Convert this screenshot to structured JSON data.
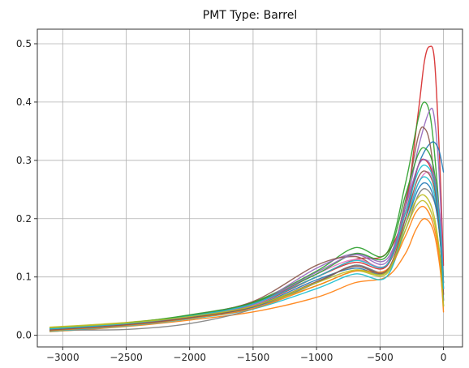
{
  "chart_data": {
    "type": "line",
    "title": "PMT Type: Barrel",
    "xlabel": "",
    "ylabel": "",
    "xlim": [
      -3200,
      150
    ],
    "ylim": [
      -0.02,
      0.525
    ],
    "grid": true,
    "xticks": [
      -3000,
      -2500,
      -2000,
      -1500,
      -1000,
      -500,
      0
    ],
    "yticks": [
      0.0,
      0.1,
      0.2,
      0.3,
      0.4,
      0.5
    ],
    "x_range": [
      -3100,
      0
    ],
    "series": [
      {
        "color": "#d62728",
        "values": [
          [
            -3100,
            0.01
          ],
          [
            -2500,
            0.02
          ],
          [
            -2000,
            0.032
          ],
          [
            -1500,
            0.052
          ],
          [
            -1000,
            0.1
          ],
          [
            -700,
            0.13
          ],
          [
            -450,
            0.14
          ],
          [
            -300,
            0.22
          ],
          [
            -200,
            0.38
          ],
          [
            -150,
            0.47
          ],
          [
            -110,
            0.495
          ],
          [
            -70,
            0.47
          ],
          [
            -30,
            0.3
          ],
          [
            0,
            0.12
          ]
        ]
      },
      {
        "color": "#2ca02c",
        "values": [
          [
            -3100,
            0.012
          ],
          [
            -2500,
            0.021
          ],
          [
            -2000,
            0.035
          ],
          [
            -1500,
            0.057
          ],
          [
            -1000,
            0.11
          ],
          [
            -700,
            0.15
          ],
          [
            -450,
            0.14
          ],
          [
            -300,
            0.26
          ],
          [
            -200,
            0.37
          ],
          [
            -150,
            0.4
          ],
          [
            -100,
            0.37
          ],
          [
            -50,
            0.26
          ],
          [
            0,
            0.1
          ]
        ]
      },
      {
        "color": "#9467bd",
        "values": [
          [
            -3100,
            0.008
          ],
          [
            -2500,
            0.019
          ],
          [
            -2000,
            0.031
          ],
          [
            -1500,
            0.053
          ],
          [
            -1000,
            0.115
          ],
          [
            -700,
            0.14
          ],
          [
            -450,
            0.13
          ],
          [
            -300,
            0.22
          ],
          [
            -200,
            0.32
          ],
          [
            -110,
            0.385
          ],
          [
            -70,
            0.37
          ],
          [
            -30,
            0.26
          ],
          [
            0,
            0.08
          ]
        ]
      },
      {
        "color": "#1f77b4",
        "values": [
          [
            -3100,
            0.009
          ],
          [
            -2500,
            0.018
          ],
          [
            -2000,
            0.03
          ],
          [
            -1500,
            0.048
          ],
          [
            -1000,
            0.09
          ],
          [
            -700,
            0.12
          ],
          [
            -450,
            0.11
          ],
          [
            -300,
            0.2
          ],
          [
            -200,
            0.29
          ],
          [
            -100,
            0.33
          ],
          [
            -40,
            0.32
          ],
          [
            0,
            0.28
          ]
        ]
      },
      {
        "color": "#ff7f0e",
        "values": [
          [
            -3100,
            0.006
          ],
          [
            -2500,
            0.015
          ],
          [
            -2000,
            0.026
          ],
          [
            -1500,
            0.04
          ],
          [
            -1000,
            0.065
          ],
          [
            -700,
            0.09
          ],
          [
            -450,
            0.1
          ],
          [
            -300,
            0.14
          ],
          [
            -220,
            0.18
          ],
          [
            -150,
            0.2
          ],
          [
            -80,
            0.18
          ],
          [
            -30,
            0.12
          ],
          [
            0,
            0.05
          ]
        ]
      },
      {
        "color": "#8c564b",
        "values": [
          [
            -3100,
            0.011
          ],
          [
            -2500,
            0.02
          ],
          [
            -2000,
            0.034
          ],
          [
            -1500,
            0.058
          ],
          [
            -1000,
            0.12
          ],
          [
            -700,
            0.135
          ],
          [
            -450,
            0.12
          ],
          [
            -300,
            0.23
          ],
          [
            -200,
            0.34
          ],
          [
            -150,
            0.355
          ],
          [
            -100,
            0.32
          ],
          [
            -40,
            0.2
          ],
          [
            0,
            0.09
          ]
        ]
      },
      {
        "color": "#e377c2",
        "values": [
          [
            -3100,
            0.01
          ],
          [
            -2500,
            0.019
          ],
          [
            -2000,
            0.032
          ],
          [
            -1500,
            0.052
          ],
          [
            -1000,
            0.105
          ],
          [
            -700,
            0.13
          ],
          [
            -450,
            0.12
          ],
          [
            -300,
            0.2
          ],
          [
            -200,
            0.26
          ],
          [
            -120,
            0.28
          ],
          [
            -60,
            0.25
          ],
          [
            -20,
            0.18
          ],
          [
            0,
            0.06
          ]
        ]
      },
      {
        "color": "#7f7f7f",
        "values": [
          [
            -3100,
            0.009
          ],
          [
            -2500,
            0.01
          ],
          [
            -2000,
            0.02
          ],
          [
            -1500,
            0.045
          ],
          [
            -1000,
            0.09
          ],
          [
            -700,
            0.12
          ],
          [
            -450,
            0.11
          ],
          [
            -300,
            0.18
          ],
          [
            -200,
            0.24
          ],
          [
            -130,
            0.25
          ],
          [
            -60,
            0.22
          ],
          [
            -20,
            0.15
          ],
          [
            0,
            0.05
          ]
        ]
      },
      {
        "color": "#bcbd22",
        "values": [
          [
            -3100,
            0.014
          ],
          [
            -2500,
            0.022
          ],
          [
            -2000,
            0.033
          ],
          [
            -1500,
            0.05
          ],
          [
            -1000,
            0.085
          ],
          [
            -700,
            0.11
          ],
          [
            -450,
            0.105
          ],
          [
            -300,
            0.18
          ],
          [
            -220,
            0.22
          ],
          [
            -150,
            0.23
          ],
          [
            -80,
            0.2
          ],
          [
            -30,
            0.14
          ],
          [
            0,
            0.06
          ]
        ]
      },
      {
        "color": "#17becf",
        "values": [
          [
            -3100,
            0.007
          ],
          [
            -2500,
            0.016
          ],
          [
            -2000,
            0.028
          ],
          [
            -1500,
            0.045
          ],
          [
            -1000,
            0.08
          ],
          [
            -700,
            0.105
          ],
          [
            -450,
            0.1
          ],
          [
            -300,
            0.19
          ],
          [
            -200,
            0.26
          ],
          [
            -130,
            0.27
          ],
          [
            -70,
            0.24
          ],
          [
            -25,
            0.16
          ],
          [
            0,
            0.07
          ]
        ]
      },
      {
        "color": "#d62728",
        "values": [
          [
            -3100,
            0.011
          ],
          [
            -2500,
            0.02
          ],
          [
            -2000,
            0.033
          ],
          [
            -1500,
            0.055
          ],
          [
            -1000,
            0.1
          ],
          [
            -700,
            0.125
          ],
          [
            -450,
            0.118
          ],
          [
            -300,
            0.21
          ],
          [
            -200,
            0.29
          ],
          [
            -140,
            0.3
          ],
          [
            -80,
            0.27
          ],
          [
            -30,
            0.18
          ],
          [
            0,
            0.08
          ]
        ]
      },
      {
        "color": "#2ca02c",
        "values": [
          [
            -3100,
            0.01
          ],
          [
            -2500,
            0.021
          ],
          [
            -2000,
            0.034
          ],
          [
            -1500,
            0.056
          ],
          [
            -1000,
            0.105
          ],
          [
            -700,
            0.14
          ],
          [
            -450,
            0.135
          ],
          [
            -300,
            0.24
          ],
          [
            -200,
            0.31
          ],
          [
            -140,
            0.32
          ],
          [
            -80,
            0.29
          ],
          [
            -30,
            0.2
          ],
          [
            0,
            0.09
          ]
        ]
      },
      {
        "color": "#1f77b4",
        "values": [
          [
            -3100,
            0.012
          ],
          [
            -2500,
            0.02
          ],
          [
            -2000,
            0.031
          ],
          [
            -1500,
            0.05
          ],
          [
            -1000,
            0.095
          ],
          [
            -700,
            0.115
          ],
          [
            -450,
            0.108
          ],
          [
            -300,
            0.19
          ],
          [
            -200,
            0.25
          ],
          [
            -130,
            0.26
          ],
          [
            -70,
            0.23
          ],
          [
            -25,
            0.16
          ],
          [
            0,
            0.06
          ]
        ]
      },
      {
        "color": "#ff7f0e",
        "values": [
          [
            -3100,
            0.008
          ],
          [
            -2500,
            0.017
          ],
          [
            -2000,
            0.029
          ],
          [
            -1500,
            0.046
          ],
          [
            -1000,
            0.085
          ],
          [
            -700,
            0.11
          ],
          [
            -450,
            0.112
          ],
          [
            -300,
            0.17
          ],
          [
            -220,
            0.21
          ],
          [
            -150,
            0.22
          ],
          [
            -80,
            0.19
          ],
          [
            -30,
            0.13
          ],
          [
            0,
            0.04
          ]
        ]
      },
      {
        "color": "#9467bd",
        "values": [
          [
            -3100,
            0.01
          ],
          [
            -2500,
            0.019
          ],
          [
            -2000,
            0.032
          ],
          [
            -1500,
            0.053
          ],
          [
            -1000,
            0.108
          ],
          [
            -700,
            0.138
          ],
          [
            -450,
            0.125
          ],
          [
            -300,
            0.22
          ],
          [
            -200,
            0.29
          ],
          [
            -130,
            0.3
          ],
          [
            -70,
            0.27
          ],
          [
            -25,
            0.19
          ],
          [
            0,
            0.09
          ]
        ]
      },
      {
        "color": "#8c564b",
        "values": [
          [
            -3100,
            0.009
          ],
          [
            -2500,
            0.018
          ],
          [
            -2000,
            0.03
          ],
          [
            -1500,
            0.049
          ],
          [
            -1000,
            0.092
          ],
          [
            -700,
            0.118
          ],
          [
            -450,
            0.11
          ],
          [
            -300,
            0.2
          ],
          [
            -200,
            0.27
          ],
          [
            -130,
            0.28
          ],
          [
            -70,
            0.25
          ],
          [
            -25,
            0.17
          ],
          [
            0,
            0.07
          ]
        ]
      },
      {
        "color": "#17becf",
        "values": [
          [
            -3100,
            0.011
          ],
          [
            -2500,
            0.02
          ],
          [
            -2000,
            0.033
          ],
          [
            -1500,
            0.054
          ],
          [
            -1000,
            0.1
          ],
          [
            -700,
            0.128
          ],
          [
            -450,
            0.12
          ],
          [
            -300,
            0.21
          ],
          [
            -200,
            0.28
          ],
          [
            -130,
            0.29
          ],
          [
            -70,
            0.26
          ],
          [
            -25,
            0.18
          ],
          [
            0,
            0.08
          ]
        ]
      },
      {
        "color": "#bcbd22",
        "values": [
          [
            -3100,
            0.013
          ],
          [
            -2500,
            0.021
          ],
          [
            -2000,
            0.032
          ],
          [
            -1500,
            0.05
          ],
          [
            -1000,
            0.09
          ],
          [
            -700,
            0.112
          ],
          [
            -450,
            0.108
          ],
          [
            -300,
            0.19
          ],
          [
            -220,
            0.23
          ],
          [
            -150,
            0.24
          ],
          [
            -80,
            0.21
          ],
          [
            -30,
            0.14
          ],
          [
            0,
            0.05
          ]
        ]
      }
    ]
  }
}
